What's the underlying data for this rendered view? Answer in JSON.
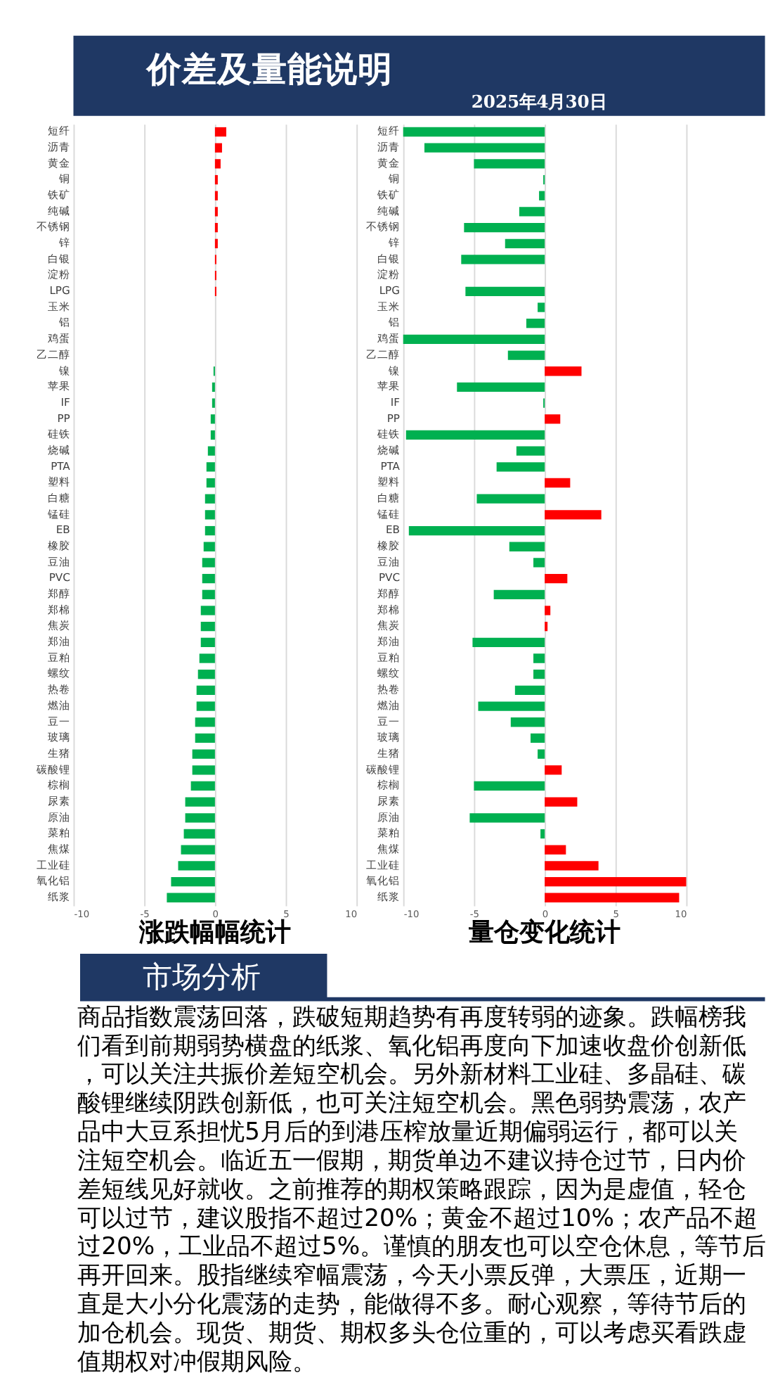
{
  "chart_data": [
    {
      "type": "other",
      "title": "价差及量能说明",
      "subtitle": "2025年4月30日"
    },
    {
      "type": "bar",
      "orientation": "horizontal",
      "title": "涨跌幅幅统计",
      "categories": [
        "短纤",
        "沥青",
        "黄金",
        "铜",
        "铁矿",
        "纯碱",
        "不锈钢",
        "锌",
        "白银",
        "淀粉",
        "LPG",
        "玉米",
        "铝",
        "鸡蛋",
        "乙二醇",
        "镍",
        "苹果",
        "IF",
        "PP",
        "硅铁",
        "烧碱",
        "PTA",
        "塑料",
        "白糖",
        "锰硅",
        "EB",
        "橡胶",
        "豆油",
        "PVC",
        "郑醇",
        "郑棉",
        "焦炭",
        "郑油",
        "豆粕",
        "螺纹",
        "热卷",
        "燃油",
        "豆一",
        "玻璃",
        "生猪",
        "碳酸锂",
        "棕榈",
        "尿素",
        "原油",
        "菜粕",
        "焦煤",
        "工业硅",
        "氧化铝",
        "纸浆"
      ],
      "values": [
        0.8,
        0.5,
        0.4,
        0.2,
        0.2,
        0.2,
        0.2,
        0.2,
        0.1,
        0.1,
        0.1,
        0,
        0,
        0,
        0,
        -0.1,
        -0.2,
        -0.2,
        -0.3,
        -0.3,
        -0.5,
        -0.6,
        -0.6,
        -0.7,
        -0.7,
        -0.7,
        -0.8,
        -0.9,
        -0.9,
        -0.9,
        -1.0,
        -1.0,
        -1.0,
        -1.1,
        -1.2,
        -1.3,
        -1.3,
        -1.4,
        -1.4,
        -1.6,
        -1.6,
        -1.7,
        -2.1,
        -2.1,
        -2.2,
        -2.4,
        -2.6,
        -3.1,
        -3.4
      ],
      "colors": [
        "#ff0000",
        "#ff0000",
        "#ff0000",
        "#ff0000",
        "#ff0000",
        "#ff0000",
        "#ff0000",
        "#ff0000",
        "#ff0000",
        "#ff0000",
        "#ff0000",
        "#00b050",
        "#00b050",
        "#00b050",
        "#00b050",
        "#00b050",
        "#00b050",
        "#00b050",
        "#00b050",
        "#00b050",
        "#00b050",
        "#00b050",
        "#00b050",
        "#00b050",
        "#00b050",
        "#00b050",
        "#00b050",
        "#00b050",
        "#00b050",
        "#00b050",
        "#00b050",
        "#00b050",
        "#00b050",
        "#00b050",
        "#00b050",
        "#00b050",
        "#00b050",
        "#00b050",
        "#00b050",
        "#00b050",
        "#00b050",
        "#00b050",
        "#00b050",
        "#00b050",
        "#00b050",
        "#00b050",
        "#00b050",
        "#00b050",
        "#00b050"
      ],
      "xlim": [
        -10,
        10
      ],
      "xticks": [
        -10,
        -5,
        0,
        5,
        10
      ],
      "grid": "x"
    },
    {
      "type": "bar",
      "orientation": "horizontal",
      "title": "量仓变化统计",
      "categories": [
        "短纤",
        "沥青",
        "黄金",
        "铜",
        "铁矿",
        "纯碱",
        "不锈钢",
        "锌",
        "白银",
        "淀粉",
        "LPG",
        "玉米",
        "铝",
        "鸡蛋",
        "乙二醇",
        "镍",
        "苹果",
        "IF",
        "PP",
        "硅铁",
        "烧碱",
        "PTA",
        "塑料",
        "白糖",
        "锰硅",
        "EB",
        "橡胶",
        "豆油",
        "PVC",
        "郑醇",
        "郑棉",
        "焦炭",
        "郑油",
        "豆粕",
        "螺纹",
        "热卷",
        "燃油",
        "豆一",
        "玻璃",
        "生猪",
        "碳酸锂",
        "棕榈",
        "尿素",
        "原油",
        "菜粕",
        "焦煤",
        "工业硅",
        "氧化铝",
        "纸浆"
      ],
      "values": [
        -10,
        -8.5,
        -5.0,
        -0.1,
        -0.4,
        -1.8,
        -5.7,
        -2.8,
        -5.9,
        0,
        -5.6,
        -0.5,
        -1.3,
        -10,
        -2.6,
        2.6,
        -6.2,
        -0.1,
        1.1,
        -9.8,
        -2.0,
        -3.4,
        1.8,
        -4.8,
        4.0,
        -9.6,
        -2.5,
        -0.8,
        1.6,
        -3.6,
        0.4,
        0.2,
        -5.1,
        -0.8,
        -0.8,
        -2.1,
        -4.7,
        -2.4,
        -1.0,
        -0.5,
        1.2,
        -5.0,
        2.3,
        -5.3,
        -0.3,
        1.5,
        3.8,
        10.0,
        9.5
      ],
      "colors": [
        "#00b050",
        "#00b050",
        "#00b050",
        "#00b050",
        "#00b050",
        "#00b050",
        "#00b050",
        "#00b050",
        "#00b050",
        "#00b050",
        "#00b050",
        "#00b050",
        "#00b050",
        "#00b050",
        "#00b050",
        "#ff0000",
        "#00b050",
        "#00b050",
        "#ff0000",
        "#00b050",
        "#00b050",
        "#00b050",
        "#ff0000",
        "#00b050",
        "#ff0000",
        "#00b050",
        "#00b050",
        "#00b050",
        "#ff0000",
        "#00b050",
        "#ff0000",
        "#ff0000",
        "#00b050",
        "#00b050",
        "#00b050",
        "#00b050",
        "#00b050",
        "#00b050",
        "#00b050",
        "#00b050",
        "#ff0000",
        "#00b050",
        "#ff0000",
        "#00b050",
        "#00b050",
        "#ff0000",
        "#ff0000",
        "#ff0000",
        "#ff0000"
      ],
      "xlim": [
        -10,
        10
      ],
      "xticks": [
        -10,
        -5,
        0,
        5,
        10
      ],
      "grid": "x"
    },
    {
      "type": "other",
      "title": "市场分析",
      "annotations": [
        "商品指数震荡回落，跌破短期趋势有再度转弱的迹象。跌幅榜我们看到前期弱势横盘的纸浆、氧化铝再度向下加速收盘价创新低，可以关注共振价差短空机会。另外新材料工业硅、多晶硅、碳酸锂继续阴跌创新低，也可关注短空机会。黑色弱势震荡，农产品中大豆系担忧5月后的到港压榨放量近期偏弱运行，都可以关注短空机会。临近五一假期，期货单边不建议持仓过节，日内价差短线见好就收。之前推荐的期权策略跟踪，因为是虚值，轻仓可以过节，建议股指不超过20%；黄金不超过10%；农产品不超过20%，工业品不超过5%。谨慎的朋友也可以空仓休息，等节后再开回来。股指继续窄幅震荡，今天小票反弹，大票压，近期一直是大小分化震荡的走势，能做得不多。耐心观察，等待节后的加仓机会。现货、期货、期权多头仓位重的，可以考虑买看跌虚值期权对冲假期风险。"
      ]
    }
  ]
}
